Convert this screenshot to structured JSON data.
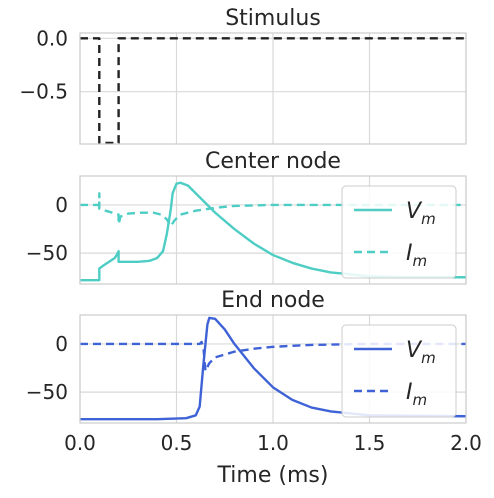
{
  "chart_data": [
    {
      "type": "line",
      "title": "Stimulus",
      "xlim": [
        0,
        2.0
      ],
      "ylim": [
        -0.99,
        0.05
      ],
      "xticks": [
        0.0,
        0.5,
        1.0,
        1.5,
        2.0
      ],
      "yticks": [
        {
          "v": 0.0,
          "label": "0.0"
        },
        {
          "v": -0.5,
          "label": "−0.5"
        }
      ],
      "show_xticklabels": false,
      "grid": true,
      "legend": null,
      "series": [
        {
          "color": "#222222",
          "dash": "dashed",
          "points": [
            [
              0,
              0
            ],
            [
              0.1,
              0
            ],
            [
              0.1,
              -0.98
            ],
            [
              0.2,
              -0.98
            ],
            [
              0.2,
              0
            ],
            [
              2.0,
              0
            ]
          ]
        }
      ]
    },
    {
      "type": "line",
      "title": "Center node",
      "xlim": [
        0,
        2.0
      ],
      "ylim": [
        -82,
        30
      ],
      "xticks": [
        0.0,
        0.5,
        1.0,
        1.5,
        2.0
      ],
      "yticks": [
        {
          "v": 0,
          "label": "0"
        },
        {
          "v": -50,
          "label": "−50"
        }
      ],
      "show_xticklabels": false,
      "grid": true,
      "legend": "right",
      "series": [
        {
          "name": "V",
          "sub": "m",
          "color": "#4ecdc4",
          "dash": "solid",
          "points": [
            [
              0,
              -78
            ],
            [
              0.1,
              -78
            ],
            [
              0.1,
              -66
            ],
            [
              0.12,
              -63
            ],
            [
              0.15,
              -59
            ],
            [
              0.18,
              -55
            ],
            [
              0.19,
              -52
            ],
            [
              0.2,
              -48
            ],
            [
              0.2,
              -59
            ],
            [
              0.3,
              -59
            ],
            [
              0.36,
              -58
            ],
            [
              0.4,
              -55
            ],
            [
              0.43,
              -48
            ],
            [
              0.45,
              -30
            ],
            [
              0.47,
              -5
            ],
            [
              0.48,
              12
            ],
            [
              0.5,
              22
            ],
            [
              0.52,
              23
            ],
            [
              0.56,
              20
            ],
            [
              0.6,
              12
            ],
            [
              0.65,
              2
            ],
            [
              0.7,
              -8
            ],
            [
              0.8,
              -25
            ],
            [
              0.9,
              -40
            ],
            [
              1.0,
              -52
            ],
            [
              1.1,
              -60
            ],
            [
              1.2,
              -66
            ],
            [
              1.3,
              -70
            ],
            [
              1.4,
              -72
            ],
            [
              1.5,
              -74
            ],
            [
              1.7,
              -75
            ],
            [
              2.0,
              -75
            ]
          ]
        },
        {
          "name": "I",
          "sub": "m",
          "color": "#4ecdc4",
          "dash": "dashed",
          "points": [
            [
              0,
              0
            ],
            [
              0.1,
              0
            ],
            [
              0.1,
              12
            ],
            [
              0.1,
              -4
            ],
            [
              0.15,
              -7
            ],
            [
              0.2,
              -10
            ],
            [
              0.2,
              -20
            ],
            [
              0.21,
              -12
            ],
            [
              0.25,
              -9
            ],
            [
              0.32,
              -8
            ],
            [
              0.38,
              -8
            ],
            [
              0.42,
              -10
            ],
            [
              0.45,
              -15
            ],
            [
              0.47,
              -22
            ],
            [
              0.49,
              -16
            ],
            [
              0.52,
              -10
            ],
            [
              0.6,
              -6
            ],
            [
              0.7,
              -3
            ],
            [
              0.8,
              -1
            ],
            [
              1.0,
              0
            ],
            [
              2.0,
              0
            ]
          ]
        }
      ]
    },
    {
      "type": "line",
      "title": "End node",
      "xlabel": "Time (ms)",
      "xlim": [
        0,
        2.0
      ],
      "ylim": [
        -82,
        30
      ],
      "xticks": [
        0.0,
        0.5,
        1.0,
        1.5,
        2.0
      ],
      "xticklabels": [
        "0.0",
        "0.5",
        "1.0",
        "1.5",
        "2.0"
      ],
      "yticks": [
        {
          "v": 0,
          "label": "0"
        },
        {
          "v": -50,
          "label": "−50"
        }
      ],
      "show_xticklabels": true,
      "grid": true,
      "legend": "right",
      "series": [
        {
          "name": "V",
          "sub": "m",
          "color": "#3f63d6",
          "dash": "solid",
          "points": [
            [
              0,
              -78
            ],
            [
              0.4,
              -78
            ],
            [
              0.55,
              -77
            ],
            [
              0.6,
              -74
            ],
            [
              0.62,
              -65
            ],
            [
              0.64,
              -20
            ],
            [
              0.66,
              20
            ],
            [
              0.67,
              27
            ],
            [
              0.7,
              26
            ],
            [
              0.75,
              15
            ],
            [
              0.8,
              0
            ],
            [
              0.9,
              -25
            ],
            [
              1.0,
              -45
            ],
            [
              1.1,
              -58
            ],
            [
              1.2,
              -66
            ],
            [
              1.3,
              -70
            ],
            [
              1.5,
              -74
            ],
            [
              2.0,
              -75
            ]
          ]
        },
        {
          "name": "I",
          "sub": "m",
          "color": "#3f63d6",
          "dash": "dashed",
          "points": [
            [
              0,
              0
            ],
            [
              0.62,
              0
            ],
            [
              0.63,
              2
            ],
            [
              0.64,
              -5
            ],
            [
              0.65,
              -28
            ],
            [
              0.67,
              -20
            ],
            [
              0.7,
              -14
            ],
            [
              0.8,
              -8
            ],
            [
              0.9,
              -5
            ],
            [
              1.0,
              -3
            ],
            [
              1.2,
              -1
            ],
            [
              1.5,
              0
            ],
            [
              2.0,
              0
            ]
          ]
        }
      ]
    }
  ]
}
